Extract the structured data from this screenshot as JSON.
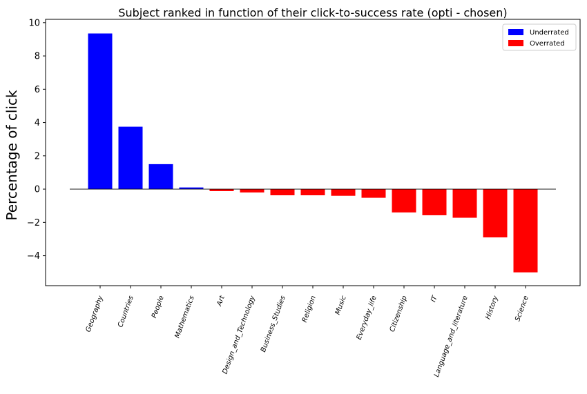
{
  "chart_data": {
    "type": "bar",
    "title": "Subject ranked in function of their click-to-success rate (opti - chosen)",
    "xlabel": "",
    "ylabel": "Percentage of click",
    "ylim": [
      -5.8,
      10.2
    ],
    "yticks": [
      -4,
      -2,
      0,
      2,
      4,
      6,
      8,
      10
    ],
    "ytick_labels": [
      "−4",
      "−2",
      "0",
      "2",
      "4",
      "6",
      "8",
      "10"
    ],
    "grid": false,
    "legend_position": "top-right",
    "categories": [
      "Geography",
      "Countries",
      "People",
      "Mathematics",
      "Art",
      "Design_and_Technology",
      "Business_Studies",
      "Religion",
      "Music",
      "Everyday_life",
      "Citizenship",
      "IT",
      "Language_and_literature",
      "History",
      "Science"
    ],
    "values": [
      9.35,
      3.75,
      1.5,
      0.1,
      -0.12,
      -0.2,
      -0.37,
      -0.37,
      -0.4,
      -0.52,
      -1.4,
      -1.57,
      -1.72,
      -2.9,
      -5.0
    ],
    "series": [
      {
        "name": "Underrated",
        "color": "#0000ff"
      },
      {
        "name": "Overrated",
        "color": "#ff0000"
      }
    ]
  }
}
